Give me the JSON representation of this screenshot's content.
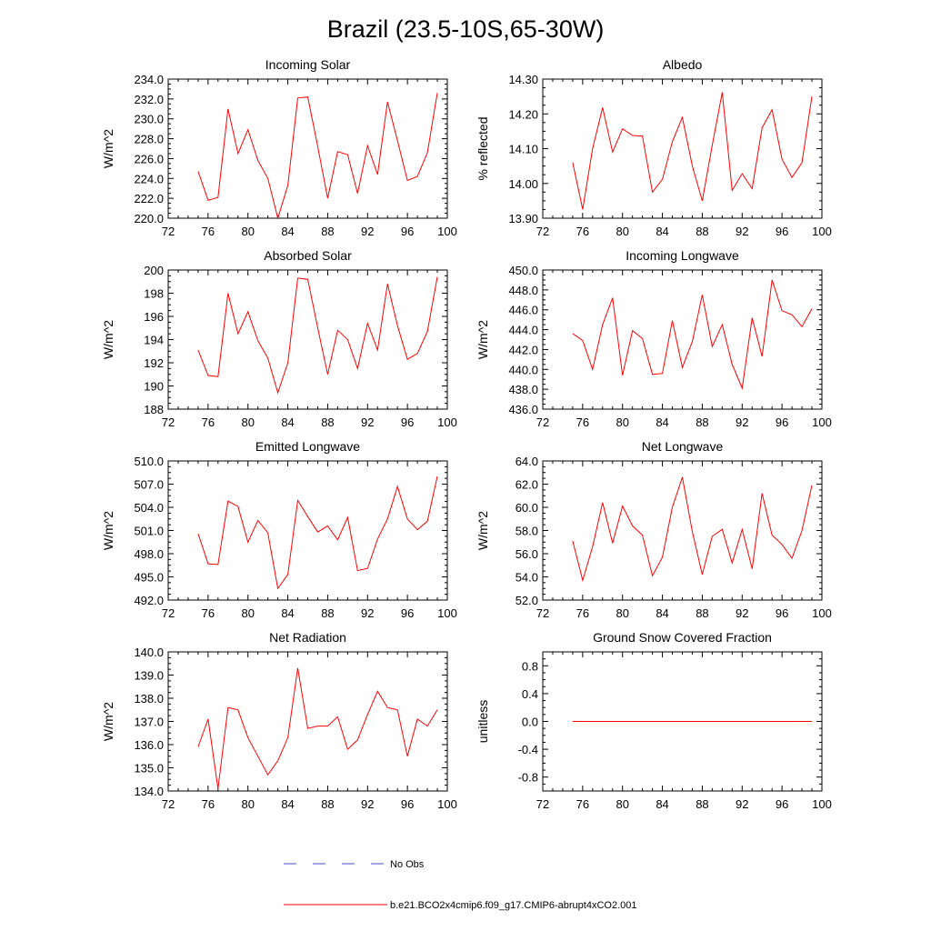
{
  "figure": {
    "title": "Brazil (23.5-10S,65-30W)",
    "legend": [
      {
        "label": "No Obs",
        "color": "#4b4bd6",
        "style": "dashed"
      },
      {
        "label": "b.e21.BCO2x4cmip6.f09_g17.CMIP6-abrupt4xCO2.001",
        "color": "#ff0000",
        "style": "solid"
      }
    ]
  },
  "chart_data": [
    {
      "type": "line",
      "title": "Incoming Solar",
      "xlabel": "",
      "ylabel": "W/m^2",
      "xlim": [
        72,
        100
      ],
      "ylim": [
        220,
        234
      ],
      "xticks": [
        72,
        76,
        80,
        84,
        88,
        92,
        96,
        100
      ],
      "yticks": [
        220,
        222,
        224,
        226,
        228,
        230,
        232,
        234
      ],
      "ytick_labels": [
        "220.0",
        "222.0",
        "224.0",
        "226.0",
        "228.0",
        "230.0",
        "232.0",
        "234.0"
      ],
      "x": [
        75,
        76,
        77,
        78,
        79,
        80,
        81,
        82,
        83,
        84,
        85,
        86,
        87,
        88,
        89,
        90,
        91,
        92,
        93,
        94,
        95,
        96,
        97,
        98,
        99
      ],
      "series": [
        {
          "name": "b.e21.BCO2x4cmip6.f09_g17.CMIP6-abrupt4xCO2.001",
          "color": "#ff0000",
          "values": [
            224.7,
            221.8,
            222.1,
            231.0,
            226.5,
            228.9,
            225.8,
            224.0,
            220.0,
            223.3,
            232.1,
            232.2,
            227.2,
            222.0,
            226.7,
            226.4,
            222.5,
            227.3,
            224.4,
            231.7,
            227.8,
            223.8,
            224.2,
            226.6,
            232.6
          ]
        }
      ]
    },
    {
      "type": "line",
      "title": "Albedo",
      "xlabel": "",
      "ylabel": "% reflected",
      "xlim": [
        72,
        100
      ],
      "ylim": [
        13.9,
        14.3
      ],
      "xticks": [
        72,
        76,
        80,
        84,
        88,
        92,
        96,
        100
      ],
      "yticks": [
        13.9,
        14.0,
        14.1,
        14.2,
        14.3
      ],
      "ytick_labels": [
        "13.90",
        "14.00",
        "14.10",
        "14.20",
        "14.30"
      ],
      "x": [
        75,
        76,
        77,
        78,
        79,
        80,
        81,
        82,
        83,
        84,
        85,
        86,
        87,
        88,
        89,
        90,
        91,
        92,
        93,
        94,
        95,
        96,
        97,
        98,
        99
      ],
      "series": [
        {
          "name": "b.e21.BCO2x4cmip6.f09_g17.CMIP6-abrupt4xCO2.001",
          "color": "#ff0000",
          "values": [
            14.06,
            13.925,
            14.1,
            14.218,
            14.09,
            14.157,
            14.138,
            14.136,
            13.975,
            14.012,
            14.12,
            14.19,
            14.05,
            13.95,
            14.11,
            14.262,
            13.98,
            14.028,
            13.985,
            14.16,
            14.212,
            14.07,
            14.017,
            14.06,
            14.25
          ]
        }
      ]
    },
    {
      "type": "line",
      "title": "Absorbed Solar",
      "xlabel": "",
      "ylabel": "W/m^2",
      "xlim": [
        72,
        100
      ],
      "ylim": [
        188,
        200
      ],
      "xticks": [
        72,
        76,
        80,
        84,
        88,
        92,
        96,
        100
      ],
      "yticks": [
        188,
        190,
        192,
        194,
        196,
        198,
        200
      ],
      "ytick_labels": [
        "188",
        "190",
        "192",
        "194",
        "196",
        "198",
        "200"
      ],
      "x": [
        75,
        76,
        77,
        78,
        79,
        80,
        81,
        82,
        83,
        84,
        85,
        86,
        87,
        88,
        89,
        90,
        91,
        92,
        93,
        94,
        95,
        96,
        97,
        98,
        99
      ],
      "series": [
        {
          "name": "b.e21.BCO2x4cmip6.f09_g17.CMIP6-abrupt4xCO2.001",
          "color": "#ff0000",
          "values": [
            193.1,
            190.9,
            190.8,
            198.0,
            194.5,
            196.4,
            193.9,
            192.4,
            189.4,
            192.0,
            199.3,
            199.2,
            195.0,
            191.0,
            194.8,
            194.0,
            191.5,
            195.4,
            193.1,
            198.8,
            195.2,
            192.3,
            192.8,
            194.7,
            199.4
          ]
        }
      ]
    },
    {
      "type": "line",
      "title": "Incoming Longwave",
      "xlabel": "",
      "ylabel": "W/m^2",
      "xlim": [
        72,
        100
      ],
      "ylim": [
        436,
        450
      ],
      "xticks": [
        72,
        76,
        80,
        84,
        88,
        92,
        96,
        100
      ],
      "yticks": [
        436,
        438,
        440,
        442,
        444,
        446,
        448,
        450
      ],
      "ytick_labels": [
        "436.0",
        "438.0",
        "440.0",
        "442.0",
        "444.0",
        "446.0",
        "448.0",
        "450.0"
      ],
      "x": [
        75,
        76,
        77,
        78,
        79,
        80,
        81,
        82,
        83,
        84,
        85,
        86,
        87,
        88,
        89,
        90,
        91,
        92,
        93,
        94,
        95,
        96,
        97,
        98,
        99
      ],
      "series": [
        {
          "name": "b.e21.BCO2x4cmip6.f09_g17.CMIP6-abrupt4xCO2.001",
          "color": "#ff0000",
          "values": [
            443.6,
            442.9,
            440.0,
            444.5,
            447.2,
            439.4,
            443.9,
            443.1,
            439.5,
            439.6,
            444.9,
            440.2,
            442.8,
            447.5,
            442.3,
            444.5,
            440.5,
            438.1,
            445.2,
            441.3,
            449.0,
            445.9,
            445.5,
            444.3,
            446.1
          ]
        }
      ]
    },
    {
      "type": "line",
      "title": "Emitted Longwave",
      "xlabel": "",
      "ylabel": "W/m^2",
      "xlim": [
        72,
        100
      ],
      "ylim": [
        492,
        510
      ],
      "xticks": [
        72,
        76,
        80,
        84,
        88,
        92,
        96,
        100
      ],
      "yticks": [
        492,
        495,
        498,
        501,
        504,
        507,
        510
      ],
      "ytick_labels": [
        "492.0",
        "495.0",
        "498.0",
        "501.0",
        "504.0",
        "507.0",
        "510.0"
      ],
      "x": [
        75,
        76,
        77,
        78,
        79,
        80,
        81,
        82,
        83,
        84,
        85,
        86,
        87,
        88,
        89,
        90,
        91,
        92,
        93,
        94,
        95,
        96,
        97,
        98,
        99
      ],
      "series": [
        {
          "name": "b.e21.BCO2x4cmip6.f09_g17.CMIP6-abrupt4xCO2.001",
          "color": "#ff0000",
          "values": [
            500.6,
            496.7,
            496.6,
            504.8,
            504.1,
            499.5,
            502.3,
            500.7,
            493.5,
            495.3,
            504.9,
            502.8,
            500.8,
            501.6,
            499.8,
            502.7,
            495.8,
            496.1,
            499.9,
            502.5,
            506.7,
            502.5,
            501.1,
            502.2,
            508.0
          ]
        }
      ]
    },
    {
      "type": "line",
      "title": "Net Longwave",
      "xlabel": "",
      "ylabel": "W/m^2",
      "xlim": [
        72,
        100
      ],
      "ylim": [
        52,
        64
      ],
      "xticks": [
        72,
        76,
        80,
        84,
        88,
        92,
        96,
        100
      ],
      "yticks": [
        52,
        54,
        56,
        58,
        60,
        62,
        64
      ],
      "ytick_labels": [
        "52.0",
        "54.0",
        "56.0",
        "58.0",
        "60.0",
        "62.0",
        "64.0"
      ],
      "x": [
        75,
        76,
        77,
        78,
        79,
        80,
        81,
        82,
        83,
        84,
        85,
        86,
        87,
        88,
        89,
        90,
        91,
        92,
        93,
        94,
        95,
        96,
        97,
        98,
        99
      ],
      "series": [
        {
          "name": "b.e21.BCO2x4cmip6.f09_g17.CMIP6-abrupt4xCO2.001",
          "color": "#ff0000",
          "values": [
            57.1,
            53.7,
            56.6,
            60.4,
            56.9,
            60.1,
            58.4,
            57.6,
            54.1,
            55.7,
            60.0,
            62.6,
            57.9,
            54.2,
            57.5,
            58.1,
            55.2,
            58.1,
            54.7,
            61.2,
            57.6,
            56.8,
            55.6,
            58.0,
            61.9
          ]
        }
      ]
    },
    {
      "type": "line",
      "title": "Net Radiation",
      "xlabel": "",
      "ylabel": "W/m^2",
      "xlim": [
        72,
        100
      ],
      "ylim": [
        134,
        140
      ],
      "xticks": [
        72,
        76,
        80,
        84,
        88,
        92,
        96,
        100
      ],
      "yticks": [
        134,
        135,
        136,
        137,
        138,
        139,
        140
      ],
      "ytick_labels": [
        "134.0",
        "135.0",
        "136.0",
        "137.0",
        "138.0",
        "139.0",
        "140.0"
      ],
      "x": [
        75,
        76,
        77,
        78,
        79,
        80,
        81,
        82,
        83,
        84,
        85,
        86,
        87,
        88,
        89,
        90,
        91,
        92,
        93,
        94,
        95,
        96,
        97,
        98,
        99
      ],
      "series": [
        {
          "name": "b.e21.BCO2x4cmip6.f09_g17.CMIP6-abrupt4xCO2.001",
          "color": "#ff0000",
          "values": [
            135.9,
            137.1,
            134.1,
            137.6,
            137.5,
            136.3,
            135.5,
            134.7,
            135.3,
            136.3,
            139.3,
            136.7,
            136.8,
            136.8,
            137.2,
            135.8,
            136.2,
            137.3,
            138.3,
            137.6,
            137.5,
            135.5,
            137.1,
            136.8,
            137.5
          ]
        }
      ]
    },
    {
      "type": "line",
      "title": "Ground Snow Covered Fraction",
      "xlabel": "",
      "ylabel": "unitless",
      "xlim": [
        72,
        100
      ],
      "ylim": [
        -1.0,
        1.0
      ],
      "xticks": [
        72,
        76,
        80,
        84,
        88,
        92,
        96,
        100
      ],
      "yticks": [
        -0.8,
        -0.4,
        0.0,
        0.4,
        0.8
      ],
      "ytick_labels": [
        "-0.8",
        "-0.4",
        "0.0",
        "0.4",
        "0.8"
      ],
      "x": [
        75,
        76,
        77,
        78,
        79,
        80,
        81,
        82,
        83,
        84,
        85,
        86,
        87,
        88,
        89,
        90,
        91,
        92,
        93,
        94,
        95,
        96,
        97,
        98,
        99
      ],
      "series": [
        {
          "name": "b.e21.BCO2x4cmip6.f09_g17.CMIP6-abrupt4xCO2.001",
          "color": "#ff0000",
          "values": [
            0,
            0,
            0,
            0,
            0,
            0,
            0,
            0,
            0,
            0,
            0,
            0,
            0,
            0,
            0,
            0,
            0,
            0,
            0,
            0,
            0,
            0,
            0,
            0,
            0
          ]
        }
      ]
    }
  ]
}
